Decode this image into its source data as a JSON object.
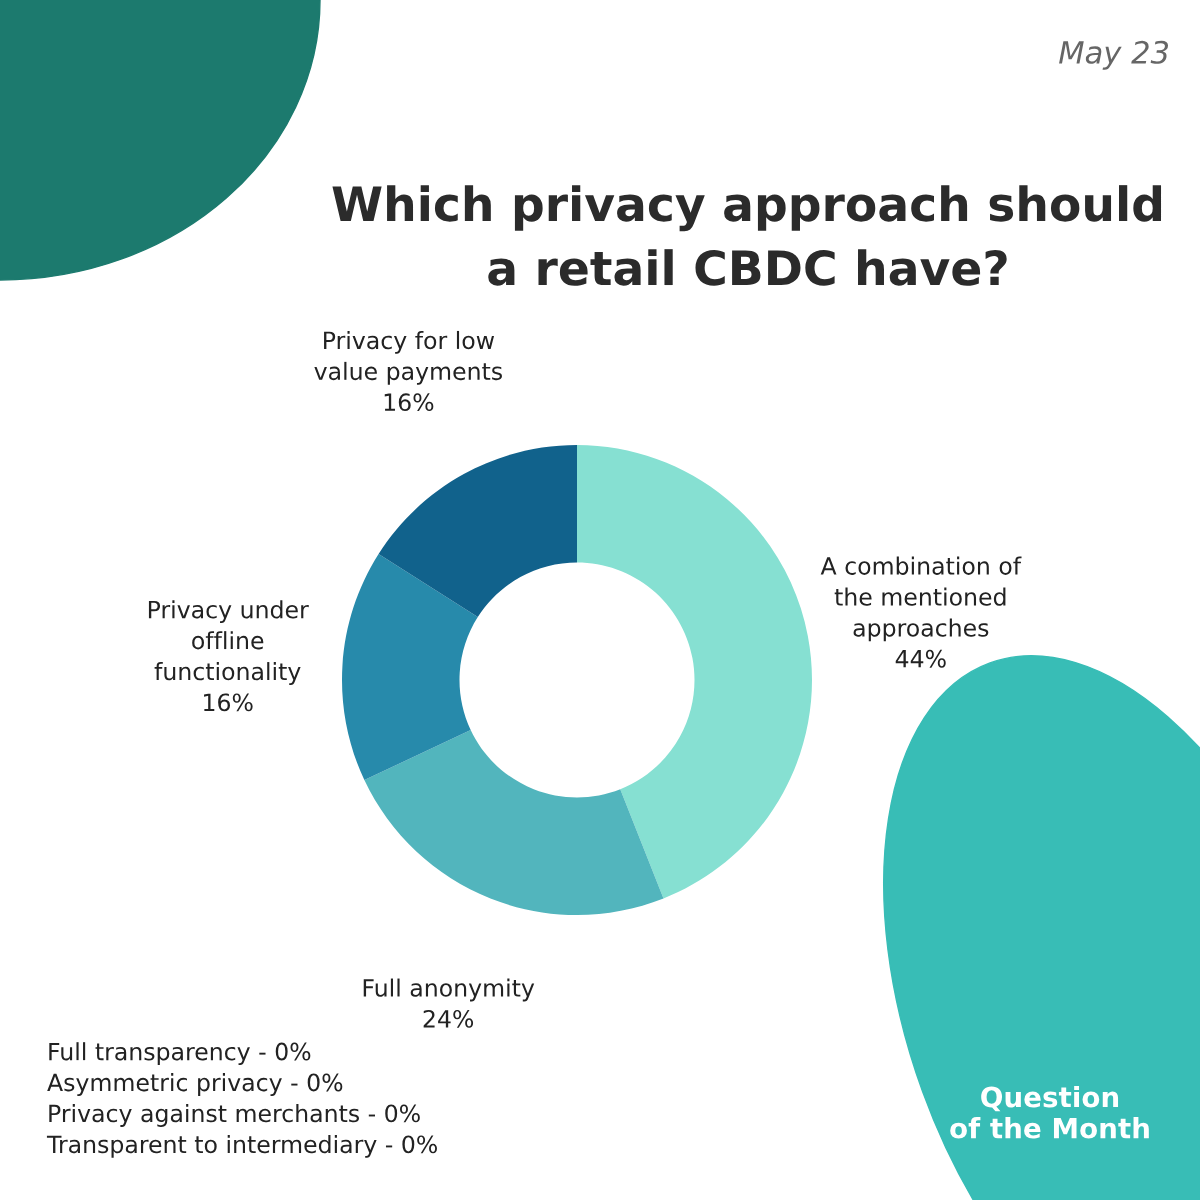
{
  "chart_data": {
    "type": "donut",
    "title": "Which privacy approach should\na retail CBDC have?",
    "categories": [
      "A combination of\nthe mentioned\napproaches",
      "Full anonymity",
      "Privacy under\noffline\nfunctionality",
      "Privacy for low\nvalue payments"
    ],
    "values": [
      44,
      24,
      16,
      16
    ],
    "colors": [
      "#86e0d2",
      "#52b5bd",
      "#278aab",
      "#11628c"
    ],
    "value_labels": [
      "44%",
      "24%",
      "16%",
      "16%"
    ],
    "annotations": [
      "May 23",
      "Full transparency - 0%\nAsymmetric privacy - 0%\nPrivacy against merchants - 0%\nTransparent to intermediary - 0%",
      "Question\nof the Month"
    ]
  }
}
